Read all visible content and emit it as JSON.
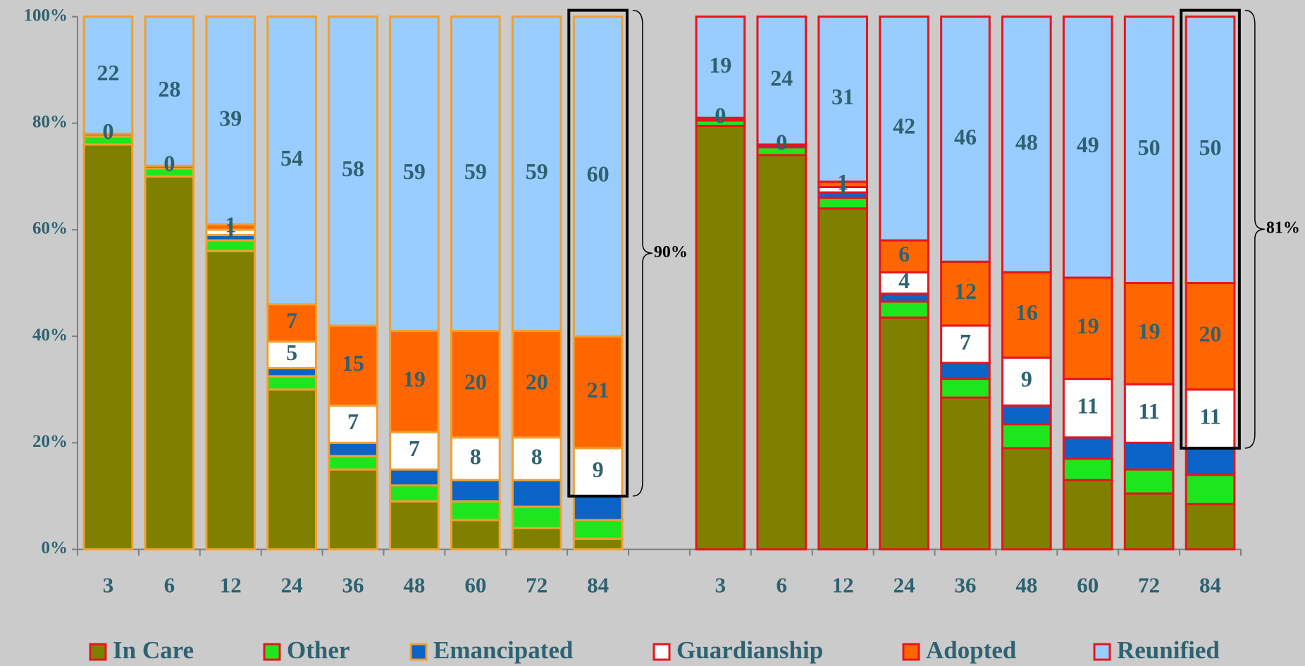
{
  "chart_data": {
    "type": "stacked_bar_percent",
    "categories": [
      "3",
      "6",
      "12",
      "24",
      "36",
      "48",
      "60",
      "72",
      "84",
      null,
      "3",
      "6",
      "12",
      "24",
      "36",
      "48",
      "60",
      "72",
      "84"
    ],
    "edgecolors": [
      "#f0a030",
      "#f0a030",
      "#f0a030",
      "#f0a030",
      "#f0a030",
      "#f0a030",
      "#f0a030",
      "#f0a030",
      "#f0a030",
      null,
      "#e8141c",
      "#e8141c",
      "#e8141c",
      "#e8141c",
      "#e8141c",
      "#e8141c",
      "#e8141c",
      "#e8141c",
      "#e8141c"
    ],
    "series": [
      {
        "name": "In Care",
        "color": "#808000",
        "show_values": false,
        "values": [
          76,
          70,
          56,
          30,
          15,
          9,
          5.5,
          4,
          2,
          null,
          79.5,
          74,
          64,
          43.5,
          28.5,
          19,
          13,
          10.5,
          8.5
        ]
      },
      {
        "name": "Other",
        "color": "#1ee61e",
        "show_values": false,
        "values": [
          1.5,
          1.5,
          2,
          2.5,
          2.5,
          3,
          3.5,
          4,
          3.5,
          null,
          1,
          1.5,
          2,
          3,
          3.5,
          4.5,
          4,
          4.5,
          5.5
        ]
      },
      {
        "name": "Emancipated",
        "color": "#0a64c8",
        "show_values": false,
        "values": [
          0.5,
          0.5,
          1,
          1.5,
          2.5,
          3,
          4,
          5,
          4.5,
          null,
          0.5,
          0.5,
          1,
          1.5,
          3,
          3.5,
          4,
          5,
          5
        ]
      },
      {
        "name": "Guardianship",
        "color": "#ffffff",
        "show_values": true,
        "values": [
          0,
          0,
          1,
          5,
          7,
          7,
          8,
          8,
          9,
          null,
          0,
          0,
          1,
          4,
          7,
          9,
          11,
          11,
          11
        ]
      },
      {
        "name": "Adopted",
        "color": "#ff6600",
        "show_values": true,
        "values": [
          0,
          0,
          1,
          7,
          15,
          19,
          20,
          20,
          21,
          null,
          0,
          0,
          1,
          6,
          12,
          16,
          19,
          19,
          20
        ]
      },
      {
        "name": "Reunified",
        "color": "#99ccff",
        "show_values": true,
        "values": [
          22,
          28,
          39,
          54,
          58,
          59,
          59,
          59,
          60,
          null,
          19,
          24,
          31,
          42,
          46,
          48,
          49,
          50,
          50
        ]
      }
    ],
    "ylim": [
      0,
      100
    ],
    "yticks": [
      {
        "value": 0,
        "label": "0%"
      },
      {
        "value": 20,
        "label": "20%"
      },
      {
        "value": 40,
        "label": "40%"
      },
      {
        "value": 60,
        "label": "60%"
      },
      {
        "value": 80,
        "label": "80%"
      },
      {
        "value": 100,
        "label": "100%"
      }
    ],
    "grid": false,
    "legend": "bottom",
    "annotations": [
      {
        "text": "90%",
        "category": 8
      },
      {
        "text": "81%",
        "category": 18
      }
    ]
  }
}
